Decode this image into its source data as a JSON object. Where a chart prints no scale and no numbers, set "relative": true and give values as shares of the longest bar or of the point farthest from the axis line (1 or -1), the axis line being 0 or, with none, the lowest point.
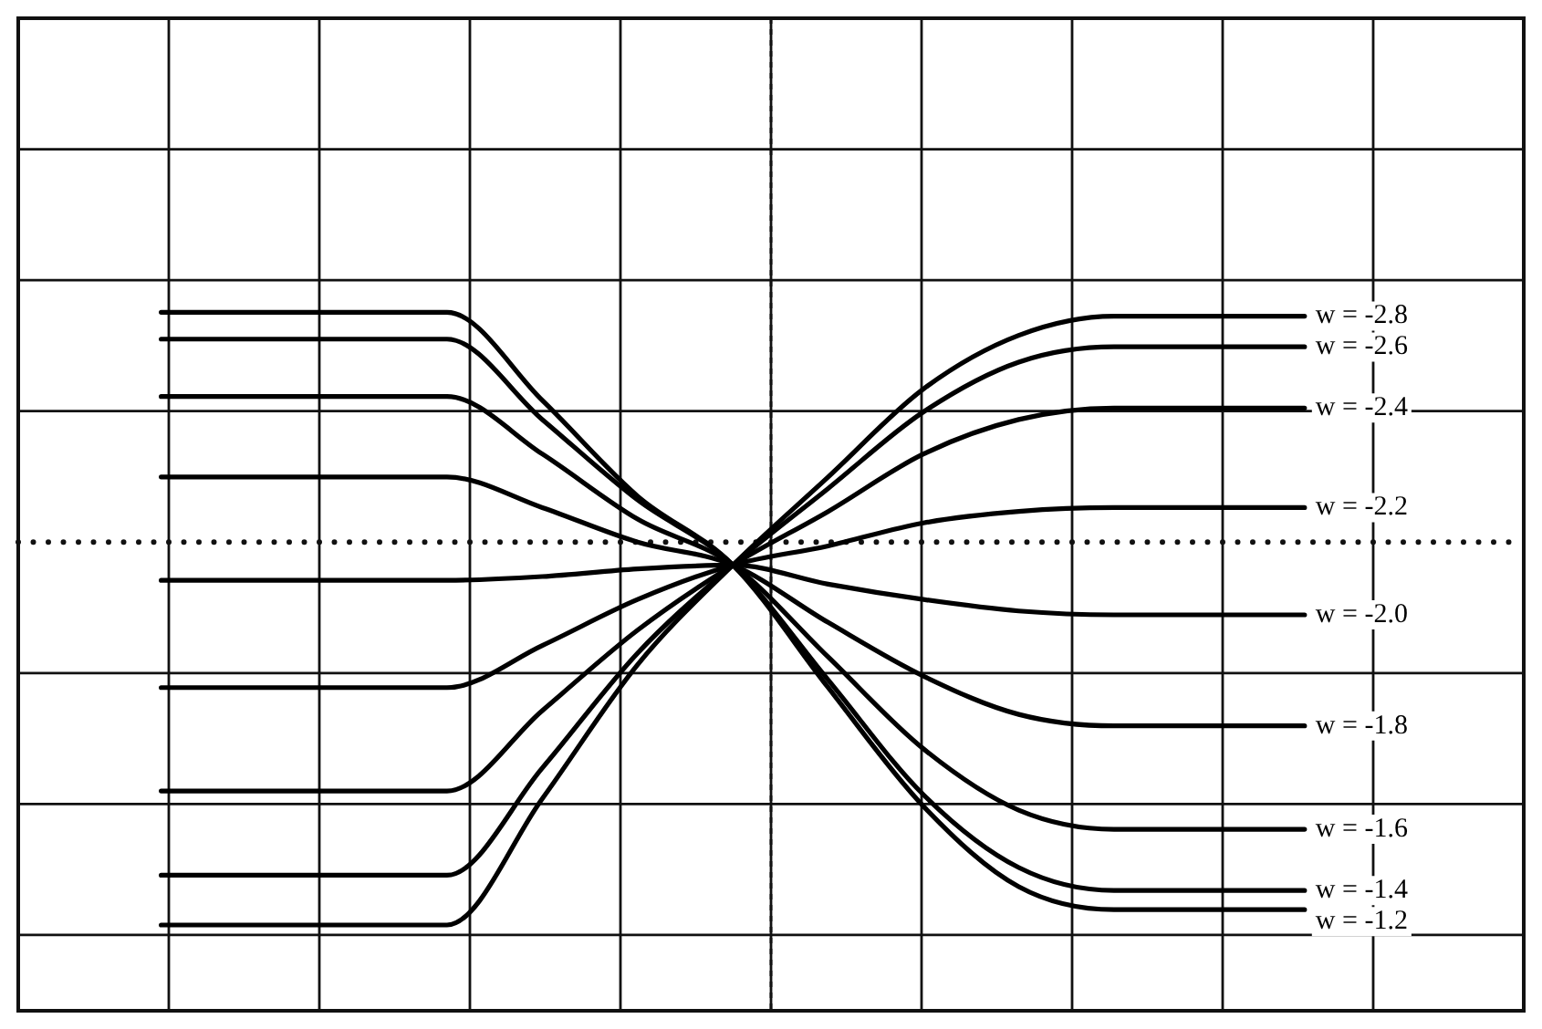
{
  "chart_data": {
    "type": "line",
    "relative": true,
    "grid": true,
    "legend": false,
    "marker": "none",
    "line_style": "solid",
    "ref_lines": [
      {
        "axis": "y",
        "value": 0,
        "line_style": "dotted",
        "color": "#111111"
      }
    ],
    "categories": [
      null,
      null,
      null,
      null,
      null,
      null,
      null,
      null,
      null,
      null,
      null,
      null,
      null
    ],
    "series": [
      {
        "name": "w = -2.8",
        "color": "#000000",
        "values": [
          -1,
          -1,
          -1,
          -1,
          -0.67,
          -0.32,
          -0.06,
          0.17,
          0.4,
          0.54,
          0.59,
          0.59,
          0.59
        ]
      },
      {
        "name": "w = -2.6",
        "color": "#000000",
        "values": [
          -0.87,
          -0.87,
          -0.87,
          -0.87,
          -0.59,
          -0.29,
          -0.06,
          0.14,
          0.34,
          0.47,
          0.51,
          0.51,
          0.51
        ]
      },
      {
        "name": "w = -2.4",
        "color": "#000000",
        "values": [
          -0.65,
          -0.65,
          -0.65,
          -0.65,
          -0.44,
          -0.23,
          -0.06,
          0.08,
          0.23,
          0.32,
          0.35,
          0.35,
          0.35
        ]
      },
      {
        "name": "w = -2.2",
        "color": "#000000",
        "values": [
          -0.38,
          -0.38,
          -0.38,
          -0.38,
          -0.27,
          -0.15,
          -0.06,
          -0.01,
          0.05,
          0.08,
          0.09,
          0.09,
          0.09
        ]
      },
      {
        "name": "w = -2.0",
        "color": "#000000",
        "values": [
          -0.1,
          -0.1,
          -0.1,
          -0.1,
          -0.09,
          -0.07,
          -0.06,
          -0.11,
          -0.15,
          -0.18,
          -0.19,
          -0.19,
          -0.19
        ]
      },
      {
        "name": "w = -1.8",
        "color": "#000000",
        "values": [
          0.17,
          0.17,
          0.17,
          0.17,
          0.09,
          0,
          -0.06,
          -0.21,
          -0.35,
          -0.45,
          -0.48,
          -0.48,
          -0.48
        ]
      },
      {
        "name": "w = -1.6",
        "color": "#000000",
        "values": [
          0.38,
          0.38,
          0.38,
          0.38,
          0.23,
          0.06,
          -0.06,
          -0.3,
          -0.54,
          -0.7,
          -0.75,
          -0.75,
          -0.75
        ]
      },
      {
        "name": "w = -1.4",
        "color": "#000000",
        "values": [
          0.53,
          0.53,
          0.53,
          0.53,
          0.32,
          0.11,
          -0.06,
          -0.36,
          -0.66,
          -0.85,
          -0.91,
          -0.91,
          -0.91
        ]
      },
      {
        "name": "w = -1.2",
        "color": "#000000",
        "values": [
          0.6,
          0.6,
          0.6,
          0.6,
          0.37,
          0.12,
          -0.06,
          -0.38,
          -0.69,
          -0.9,
          -0.96,
          -0.96,
          -0.96
        ]
      }
    ]
  }
}
